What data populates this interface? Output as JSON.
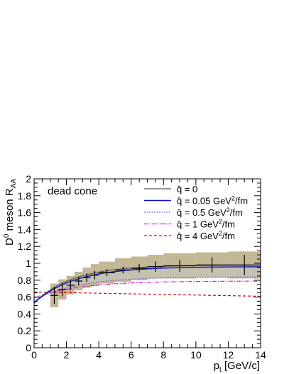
{
  "chart_data": {
    "type": "line",
    "xlabel": "p",
    "xlabel_sub": "t",
    "xlabel_unit": " [GeV/c]",
    "ylabel": "D",
    "ylabel_sup": "0",
    "ylabel_rest": " meson R",
    "ylabel_sub": "AA",
    "annotation": "dead cone",
    "xlim": [
      0,
      14
    ],
    "ylim": [
      0,
      2
    ],
    "x_ticks": [
      0,
      2,
      4,
      6,
      8,
      10,
      12,
      14
    ],
    "y_ticks": [
      "0",
      "0.2",
      "0.4",
      "0.6",
      "0.8",
      "1",
      "1.2",
      "1.4",
      "1.6",
      "1.8",
      "2"
    ],
    "y_tick_values": [
      0,
      0.2,
      0.4,
      0.6,
      0.8,
      1.0,
      1.2,
      1.4,
      1.6,
      1.8,
      2.0
    ],
    "grid": false,
    "legend_position": "top-right",
    "data_points": [
      {
        "x": 1.25,
        "xerr": 0.25,
        "y": 0.62,
        "yerr": 0.1,
        "sys": 0.14
      },
      {
        "x": 1.75,
        "xerr": 0.25,
        "y": 0.69,
        "yerr": 0.08,
        "sys": 0.12
      },
      {
        "x": 2.25,
        "xerr": 0.25,
        "y": 0.74,
        "yerr": 0.06,
        "sys": 0.11
      },
      {
        "x": 2.75,
        "xerr": 0.25,
        "y": 0.79,
        "yerr": 0.05,
        "sys": 0.11
      },
      {
        "x": 3.25,
        "xerr": 0.25,
        "y": 0.83,
        "yerr": 0.05,
        "sys": 0.12
      },
      {
        "x": 3.75,
        "xerr": 0.25,
        "y": 0.86,
        "yerr": 0.05,
        "sys": 0.13
      },
      {
        "x": 4.5,
        "xerr": 0.5,
        "y": 0.89,
        "yerr": 0.04,
        "sys": 0.13
      },
      {
        "x": 5.5,
        "xerr": 0.5,
        "y": 0.92,
        "yerr": 0.04,
        "sys": 0.14
      },
      {
        "x": 6.5,
        "xerr": 0.5,
        "y": 0.94,
        "yerr": 0.05,
        "sys": 0.14
      },
      {
        "x": 7.5,
        "xerr": 0.5,
        "y": 0.96,
        "yerr": 0.06,
        "sys": 0.14
      },
      {
        "x": 9.0,
        "xerr": 1.0,
        "y": 0.97,
        "yerr": 0.07,
        "sys": 0.15
      },
      {
        "x": 11.0,
        "xerr": 1.0,
        "y": 0.98,
        "yerr": 0.09,
        "sys": 0.15
      },
      {
        "x": 13.0,
        "xerr": 1.0,
        "y": 0.98,
        "yerr": 0.12,
        "sys": 0.16
      }
    ],
    "series": [
      {
        "label": "q̂ = 0",
        "sup": "",
        "unit": "",
        "color": "#555555",
        "style": "solid",
        "width": 1.2,
        "a": 0.98,
        "b": 0.45,
        "k": 0.42
      },
      {
        "label": "q̂ = 0.05 GeV",
        "sup": "2",
        "unit": "/fm",
        "color": "#1010cc",
        "style": "solid",
        "width": 1.4,
        "a": 0.96,
        "b": 0.43,
        "k": 0.4
      },
      {
        "label": "q̂ = 0.5 GeV",
        "sup": "2",
        "unit": "/fm",
        "color": "#6a4fd0",
        "style": "dotted",
        "width": 1.2,
        "a": 0.84,
        "b": 0.28,
        "k": 0.38
      },
      {
        "label": "q̂ = 1 GeV",
        "sup": "2",
        "unit": "/fm",
        "color": "#cc22cc",
        "style": "dashdot",
        "width": 1.2,
        "a": 0.79,
        "b": 0.2,
        "k": 0.36
      },
      {
        "label": "q̂ = 4 GeV",
        "sup": "2",
        "unit": "/fm",
        "color": "#dd0000",
        "style": "dashed",
        "width": 1.2,
        "linear": [
          0.66,
          -0.0036
        ]
      }
    ],
    "colors": {
      "sys_box": "#c2b896",
      "band": "#c8c8c8",
      "points": "#000000"
    }
  }
}
